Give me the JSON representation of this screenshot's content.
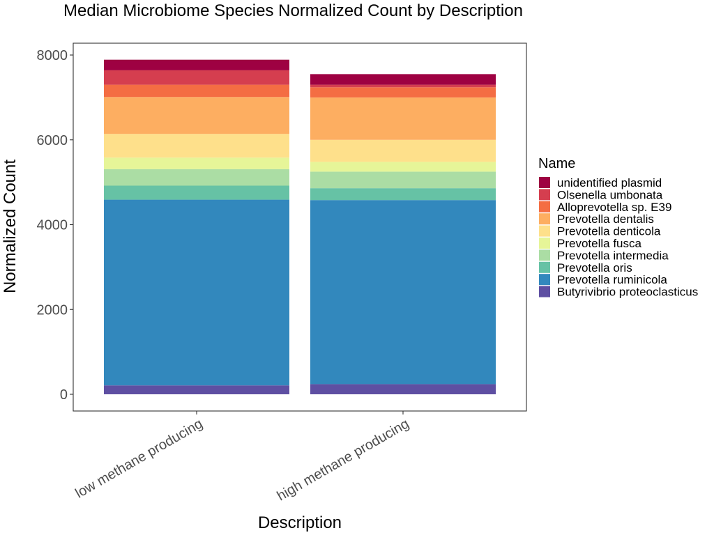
{
  "chart_data": {
    "type": "bar",
    "stacked": true,
    "title": "Median Microbiome Species Normalized Count by Description",
    "xlabel": "Description",
    "ylabel": "Normalized Count",
    "ylim": [
      0,
      8400
    ],
    "yticks": [
      0,
      2000,
      4000,
      6000,
      8000
    ],
    "grid": false,
    "legend": {
      "title": "Name",
      "placement": "right"
    },
    "categories": [
      "low methane producing",
      "high methane producing"
    ],
    "series": [
      {
        "name": "Butyrivibrio proteoclasticus",
        "color": "#5E4FA2",
        "values": [
          210,
          240
        ]
      },
      {
        "name": "Prevotella ruminicola",
        "color": "#3288BD",
        "values": [
          4380,
          4340
        ]
      },
      {
        "name": "Prevotella oris",
        "color": "#66C2A5",
        "values": [
          330,
          280
        ]
      },
      {
        "name": "Prevotella intermedia",
        "color": "#ABDDA4",
        "values": [
          390,
          390
        ]
      },
      {
        "name": "Prevotella fusca",
        "color": "#E6F598",
        "values": [
          270,
          230
        ]
      },
      {
        "name": "Prevotella denticola",
        "color": "#FEE08B",
        "values": [
          560,
          520
        ]
      },
      {
        "name": "Prevotella dentalis",
        "color": "#FDAE61",
        "values": [
          870,
          1000
        ]
      },
      {
        "name": "Alloprevotella sp. E39",
        "color": "#F46D43",
        "values": [
          290,
          240
        ]
      },
      {
        "name": "Olsenella umbonata",
        "color": "#D53E4F",
        "values": [
          340,
          60
        ]
      },
      {
        "name": "unidentified plasmid",
        "color": "#9E0142",
        "values": [
          250,
          250
        ]
      }
    ]
  }
}
